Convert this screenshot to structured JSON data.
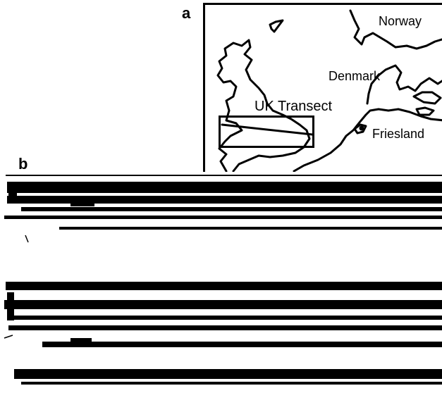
{
  "panels": {
    "a": {
      "label": "a"
    },
    "b": {
      "label": "b"
    }
  },
  "map": {
    "places": {
      "norway": "Norway",
      "denmark": "Denmark",
      "uk_transect": "UK Transect",
      "friesland": "Friesland"
    }
  }
}
